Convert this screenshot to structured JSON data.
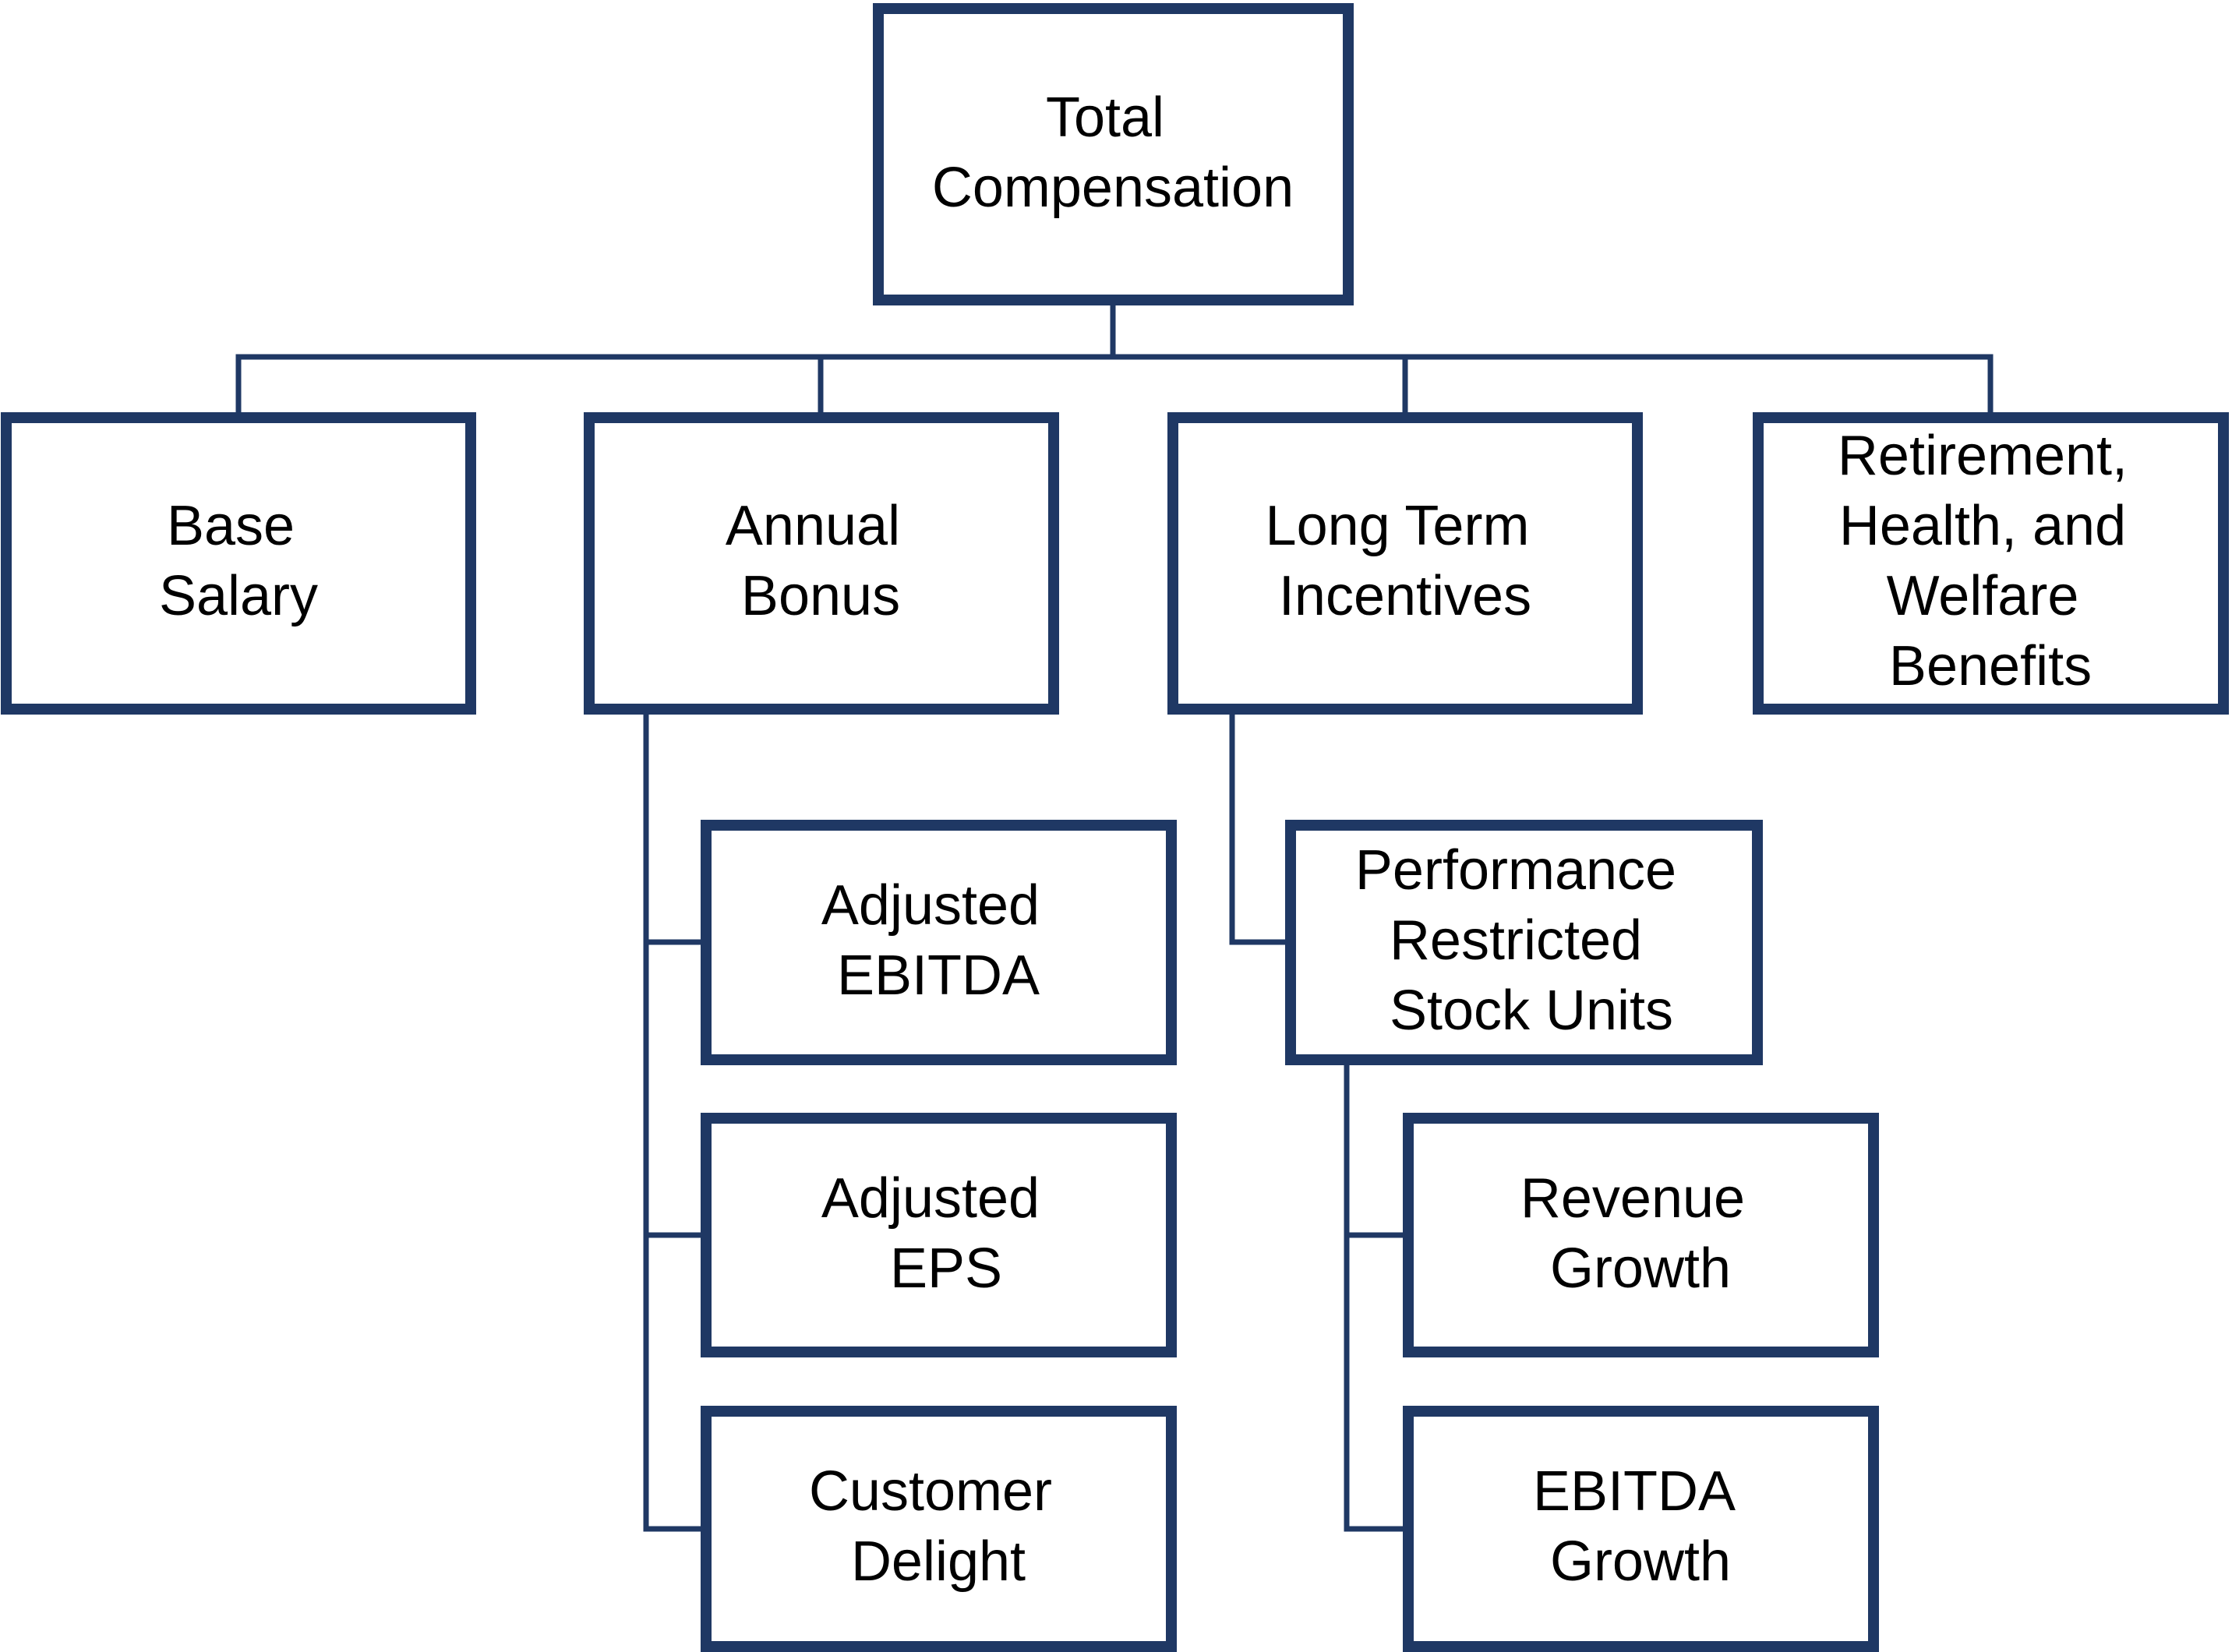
{
  "colors": {
    "box_border": "#1f3864",
    "connector": "#1f3864",
    "text": "#000000",
    "background": "#ffffff"
  },
  "nodes": {
    "total": {
      "lines": [
        "Total",
        "Compensation"
      ]
    },
    "base_salary": {
      "lines": [
        "Base",
        "Salary"
      ]
    },
    "annual_bonus": {
      "lines": [
        "Annual",
        "Bonus"
      ]
    },
    "long_term": {
      "lines": [
        "Long Term",
        "Incentives"
      ]
    },
    "retirement": {
      "lines": [
        "Retirement,",
        "Health, and",
        "Welfare",
        "Benefits"
      ]
    },
    "adj_ebitda": {
      "lines": [
        "Adjusted",
        "EBITDA"
      ]
    },
    "adj_eps": {
      "lines": [
        "Adjusted",
        "EPS"
      ]
    },
    "customer_delight": {
      "lines": [
        "Customer",
        "Delight"
      ]
    },
    "prsu": {
      "lines": [
        "Performance",
        "Restricted",
        "Stock Units"
      ]
    },
    "revenue_growth": {
      "lines": [
        "Revenue",
        "Growth"
      ]
    },
    "ebitda_growth": {
      "lines": [
        "EBITDA",
        "Growth"
      ]
    }
  }
}
